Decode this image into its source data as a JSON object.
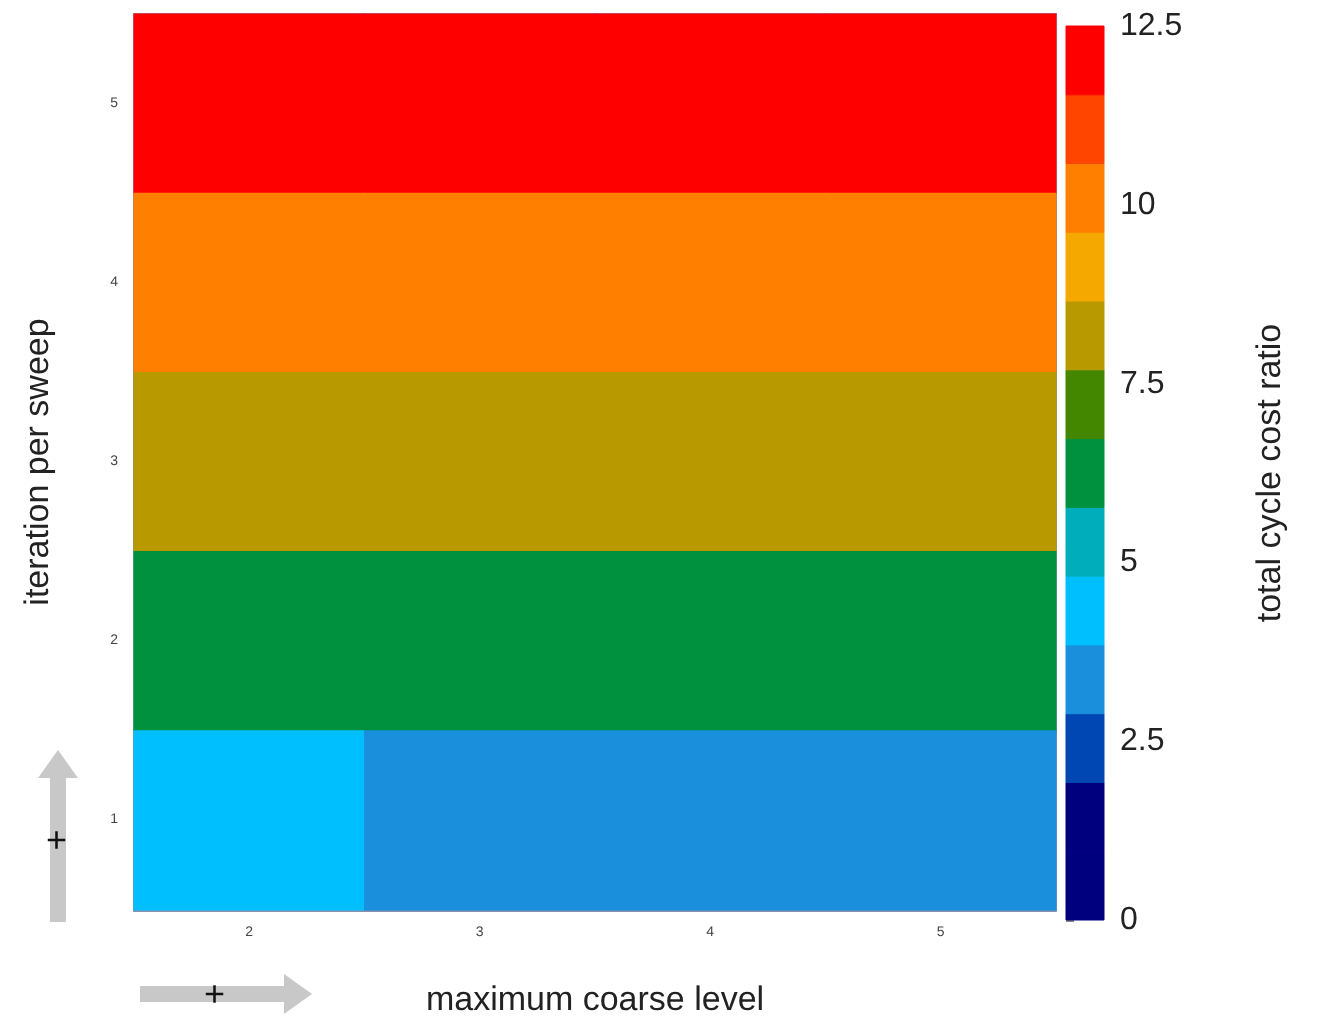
{
  "chart_data": {
    "type": "heatmap",
    "xlabel": "maximum coarse level",
    "ylabel": "iteration per sweep",
    "clabel": "total cycle cost ratio",
    "categories": [
      "2",
      "3",
      "4",
      "5"
    ],
    "y_categories": [
      "5",
      "4",
      "3",
      "2",
      "1"
    ],
    "cells": [
      [
        12.5,
        11.9,
        11.9,
        11.9
      ],
      [
        10.3,
        9.8,
        9.8,
        9.8
      ],
      [
        8.2,
        7.8,
        7.8,
        7.8
      ],
      [
        6.1,
        5.8,
        5.8,
        5.8
      ],
      [
        4.1,
        3.8,
        3.8,
        3.8
      ]
    ],
    "clim": [
      0,
      12.5
    ],
    "cticks": [
      0,
      2.5,
      5,
      7.5,
      10,
      12.5
    ],
    "colors": [
      "#00007f",
      "#00007f",
      "#0047b3",
      "#1a8fdc",
      "#00bfff",
      "#00aebb",
      "#00913f",
      "#438600",
      "#b89a00",
      "#f5a800",
      "#ff8000",
      "#ff4500",
      "#ff0000"
    ],
    "annotations": [
      "+",
      "+"
    ]
  }
}
